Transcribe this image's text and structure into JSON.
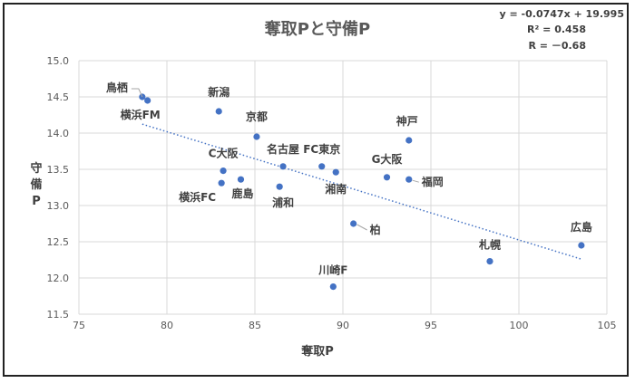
{
  "chart_data": {
    "type": "scatter",
    "title": "奪取Pと守備P",
    "xlabel": "奪取P",
    "ylabel": "守備P",
    "xlim": [
      75,
      105
    ],
    "ylim": [
      11.5,
      15.0
    ],
    "xticks": [
      "75",
      "80",
      "85",
      "90",
      "95",
      "100",
      "105"
    ],
    "yticks": [
      "11.5",
      "12.0",
      "12.5",
      "13.0",
      "13.5",
      "14.0",
      "14.5",
      "15.0"
    ],
    "grid": true,
    "point_color": "#4472C4",
    "trendline": {
      "type": "linear",
      "slope": -0.0747,
      "intercept": 19.995,
      "style": "dotted",
      "color": "#4472C4"
    },
    "annotations": [
      "y = -0.0747x + 19.995",
      "R² = 0.458",
      "R = －0.68"
    ],
    "points": [
      {
        "label": "鳥栖",
        "x": 78.6,
        "y": 14.5
      },
      {
        "label": "横浜FM",
        "x": 78.9,
        "y": 14.45
      },
      {
        "label": "新潟",
        "x": 82.95,
        "y": 14.3
      },
      {
        "label": "京都",
        "x": 85.1,
        "y": 13.95
      },
      {
        "label": "C大阪",
        "x": 83.2,
        "y": 13.48
      },
      {
        "label": "横浜FC",
        "x": 83.1,
        "y": 13.31
      },
      {
        "label": "鹿島",
        "x": 84.2,
        "y": 13.36
      },
      {
        "label": "名古屋",
        "x": 86.6,
        "y": 13.54
      },
      {
        "label": "浦和",
        "x": 86.4,
        "y": 13.26
      },
      {
        "label": "FC東京",
        "x": 88.8,
        "y": 13.54
      },
      {
        "label": "湘南",
        "x": 89.6,
        "y": 13.46
      },
      {
        "label": "川崎F",
        "x": 89.45,
        "y": 11.88
      },
      {
        "label": "柏",
        "x": 90.6,
        "y": 12.75
      },
      {
        "label": "G大阪",
        "x": 92.5,
        "y": 13.39
      },
      {
        "label": "神戸",
        "x": 93.75,
        "y": 13.9
      },
      {
        "label": "福岡",
        "x": 93.75,
        "y": 13.36
      },
      {
        "label": "札幌",
        "x": 98.35,
        "y": 12.23
      },
      {
        "label": "広島",
        "x": 103.55,
        "y": 12.45
      }
    ]
  }
}
